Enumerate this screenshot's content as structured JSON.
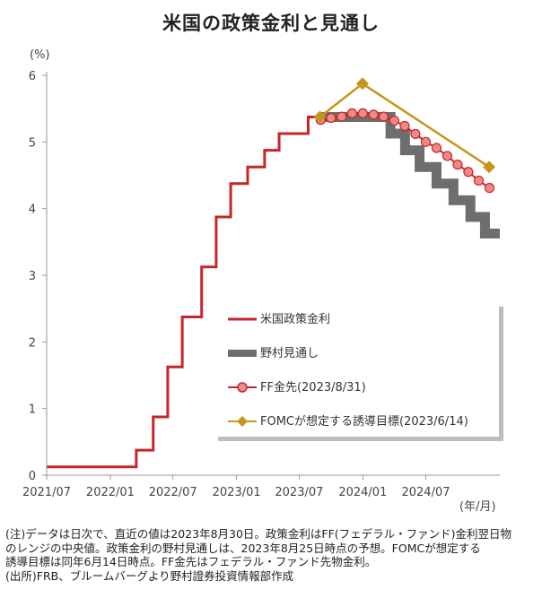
{
  "title": "米国の政策金利と見通し",
  "colors": {
    "policy": "#c8242b",
    "nomura": "#6e6e6e",
    "ff_line": "#c8242b",
    "ff_marker": "#ee8a86",
    "fomc": "#c8951c",
    "axis": "#999999"
  },
  "chart_data": {
    "type": "line",
    "title": "米国の政策金利と見通し",
    "ylabel": "(%)",
    "xlabel": "(年/月)",
    "ylim": [
      0,
      6
    ],
    "yticks": [
      "0",
      "1",
      "2",
      "3",
      "4",
      "5",
      "6"
    ],
    "xlim": [
      "2021-07-01",
      "2025-01-31"
    ],
    "xticks": [
      {
        "date": "2021-07-01",
        "label": "2021/07"
      },
      {
        "date": "2022-01-01",
        "label": "2022/01"
      },
      {
        "date": "2022-07-01",
        "label": "2022/07"
      },
      {
        "date": "2023-01-01",
        "label": "2023/01"
      },
      {
        "date": "2023-07-01",
        "label": "2023/07"
      },
      {
        "date": "2024-01-01",
        "label": "2024/01"
      },
      {
        "date": "2024-07-01",
        "label": "2024/07"
      }
    ],
    "grid": false,
    "legend_position": "center-right",
    "series": [
      {
        "name": "米国政策金利",
        "style": "step",
        "points": [
          [
            "2021-07-01",
            0.125
          ],
          [
            "2022-03-17",
            0.375
          ],
          [
            "2022-05-05",
            0.875
          ],
          [
            "2022-06-16",
            1.625
          ],
          [
            "2022-07-28",
            2.375
          ],
          [
            "2022-09-22",
            3.125
          ],
          [
            "2022-11-03",
            3.875
          ],
          [
            "2022-12-15",
            4.375
          ],
          [
            "2023-02-02",
            4.625
          ],
          [
            "2023-03-23",
            4.875
          ],
          [
            "2023-05-04",
            5.125
          ],
          [
            "2023-07-27",
            5.375
          ],
          [
            "2023-08-30",
            5.375
          ]
        ]
      },
      {
        "name": "野村見通し",
        "style": "step",
        "points": [
          [
            "2023-08-30",
            5.375
          ],
          [
            "2024-03-21",
            5.125
          ],
          [
            "2024-05-02",
            4.875
          ],
          [
            "2024-06-13",
            4.625
          ],
          [
            "2024-08-01",
            4.375
          ],
          [
            "2024-09-19",
            4.125
          ],
          [
            "2024-11-07",
            3.875
          ],
          [
            "2024-12-19",
            3.625
          ],
          [
            "2025-01-31",
            3.625
          ]
        ]
      },
      {
        "name": "FF金先(2023/8/31)",
        "style": "line-markers",
        "points": [
          [
            "2023-09-01",
            5.33
          ],
          [
            "2023-10-01",
            5.36
          ],
          [
            "2023-11-01",
            5.38
          ],
          [
            "2023-12-01",
            5.43
          ],
          [
            "2024-01-01",
            5.43
          ],
          [
            "2024-02-01",
            5.41
          ],
          [
            "2024-03-01",
            5.38
          ],
          [
            "2024-04-01",
            5.32
          ],
          [
            "2024-05-01",
            5.24
          ],
          [
            "2024-06-01",
            5.12
          ],
          [
            "2024-07-01",
            5.0
          ],
          [
            "2024-08-01",
            4.91
          ],
          [
            "2024-09-01",
            4.79
          ],
          [
            "2024-10-01",
            4.66
          ],
          [
            "2024-11-01",
            4.55
          ],
          [
            "2024-12-01",
            4.42
          ],
          [
            "2025-01-01",
            4.31
          ]
        ]
      },
      {
        "name": "FOMCが想定する誘導目標(2023/6/14)",
        "style": "line-diamonds",
        "points": [
          [
            "2023-08-30",
            5.375
          ],
          [
            "2023-12-31",
            5.875
          ],
          [
            "2024-12-31",
            4.625
          ]
        ]
      }
    ]
  },
  "notes": {
    "line1": "(注)データは日次で、直近の値は2023年8月30日。政策金利はFF(フェデラル・ファンド)金利翌日物",
    "line2": "のレンジの中央値。政策金利の野村見通しは、2023年8月25日時点の予想。FOMCが想定する",
    "line3": "誘導目標は同年6月14日時点。FF金先はフェデラル・ファンド先物金利。",
    "line4": "(出所)FRB、ブルームバーグより野村證券投資情報部作成"
  }
}
